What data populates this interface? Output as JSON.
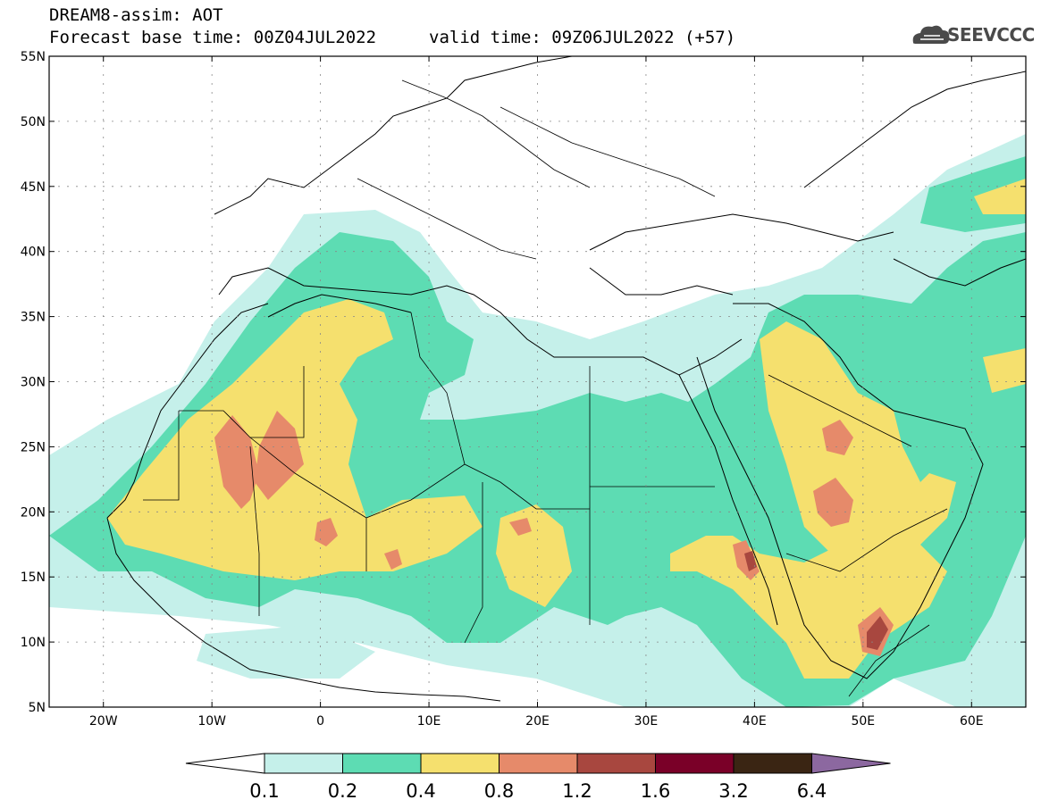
{
  "header": {
    "model_title": "DREAM8-assim: AOT",
    "base_time": "Forecast base time: 00Z04JUL2022",
    "valid_time": "valid time: 09Z06JUL2022 (+57)",
    "logo_text": "SEEVCCC"
  },
  "axes": {
    "lat_labels": [
      "55N",
      "50N",
      "45N",
      "40N",
      "35N",
      "30N",
      "25N",
      "20N",
      "15N",
      "10N",
      "5N"
    ],
    "lat_values": [
      55,
      50,
      45,
      40,
      35,
      30,
      25,
      20,
      15,
      10,
      5
    ],
    "lon_labels": [
      "20W",
      "10W",
      "0",
      "10E",
      "20E",
      "30E",
      "40E",
      "50E",
      "60E"
    ],
    "lon_values": [
      -20,
      -10,
      0,
      10,
      20,
      30,
      40,
      50,
      60
    ],
    "lon_range": [
      -25,
      65
    ],
    "lat_range": [
      5,
      55
    ]
  },
  "colorbar": {
    "labels": [
      "0.1",
      "0.2",
      "0.4",
      "0.8",
      "1.2",
      "1.6",
      "3.2",
      "6.4"
    ],
    "colors": [
      "#ffffff",
      "#c5f0ea",
      "#5ddcb3",
      "#f5e06e",
      "#e68a6a",
      "#a8473f",
      "#7a0028",
      "#3a2513",
      "#8c68a0"
    ]
  },
  "field_colors": {
    "level1": "#c5f0ea",
    "level2": "#5ddcb3",
    "level3": "#f5e06e",
    "level4": "#e68a6a",
    "level5": "#a8473f"
  }
}
